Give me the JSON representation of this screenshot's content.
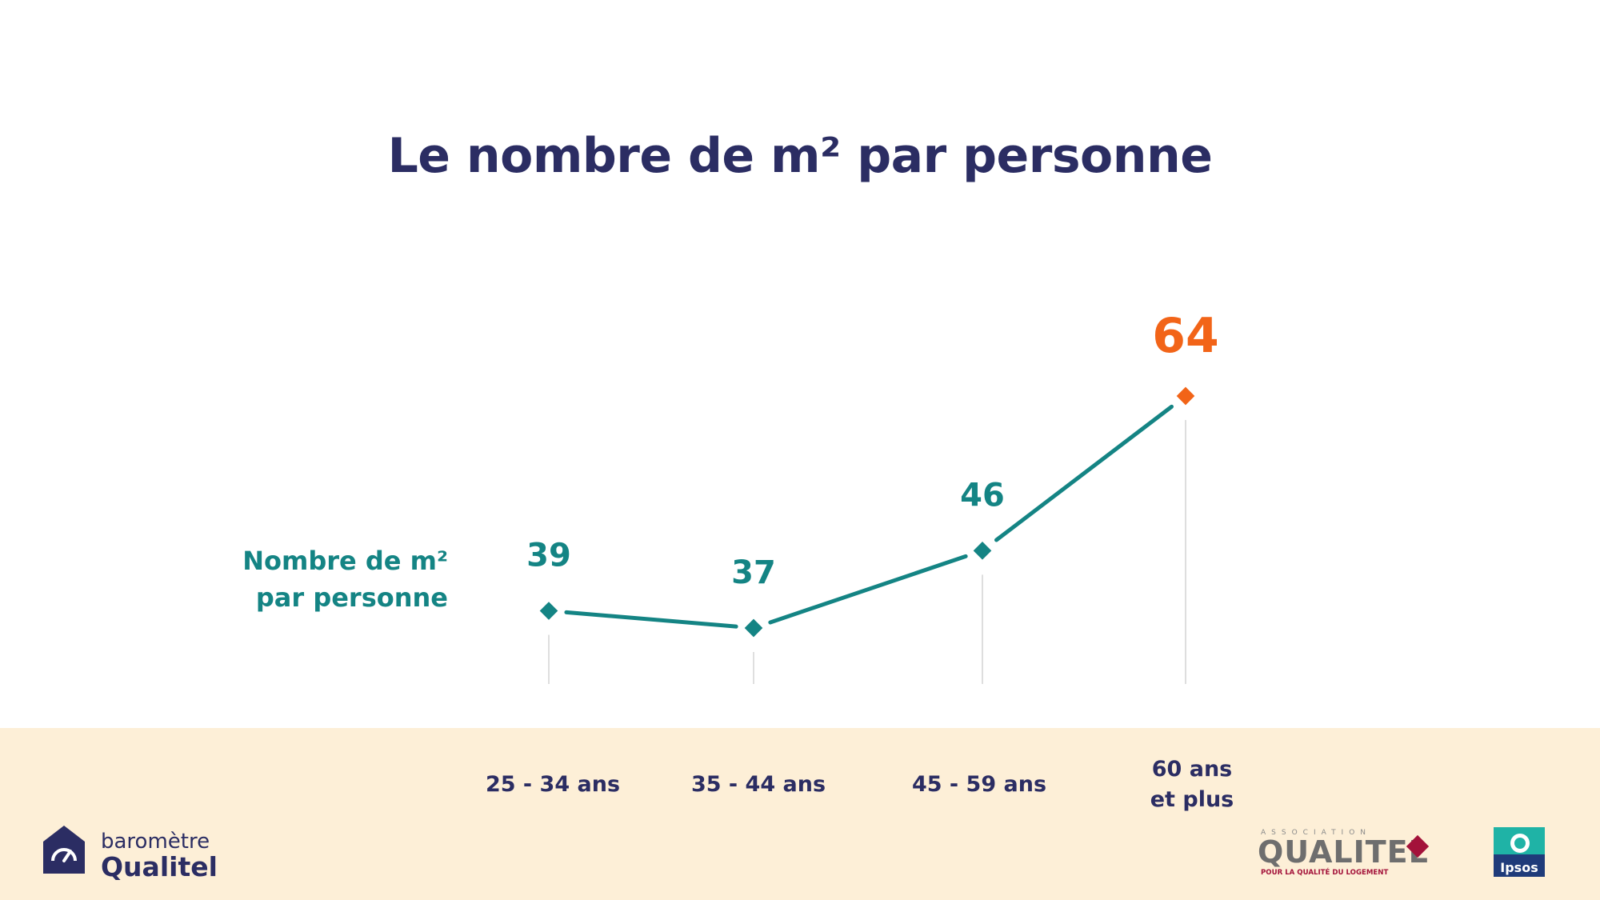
{
  "page": {
    "title": "Le nombre de m² par personne"
  },
  "chart_data": {
    "type": "line",
    "title": "Le nombre de m² par personne",
    "categories": [
      "25 - 34 ans",
      "35 - 44 ans",
      "45 - 59 ans",
      "60 ans\net plus"
    ],
    "series": [
      {
        "name": "Nombre de m²\npar personne",
        "values": [
          39,
          37,
          46,
          64
        ]
      }
    ],
    "highlight_index": 3,
    "colors": {
      "series": "#148484",
      "highlight": "#f26418",
      "gridline": "#d4d4d4"
    },
    "ylim": [
      30,
      70
    ],
    "grid": false,
    "legend": "left"
  },
  "footer": {
    "brand_small": "baromètre",
    "brand_big": "Qualitel",
    "association_logo": "ASSOCIATION QUALITEL POUR LA QUALITÉ DU LOGEMENT",
    "partner_logo": "Ipsos"
  }
}
